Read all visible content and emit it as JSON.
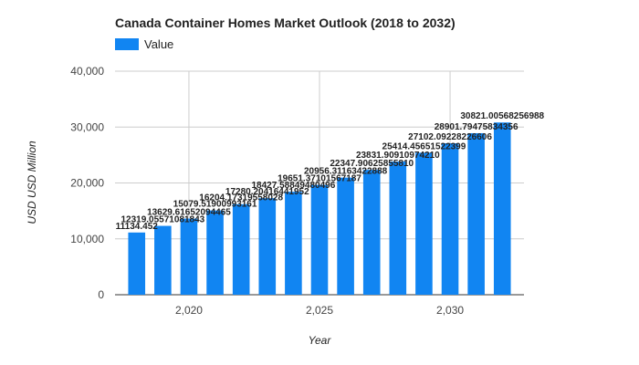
{
  "chart_data": {
    "type": "bar",
    "title": "Canada Container Homes Market Outlook (2018 to 2032)",
    "xlabel": "Year",
    "ylabel": "USD USD Million",
    "legend": {
      "position": "top-left",
      "entries": [
        "Value"
      ]
    },
    "x": [
      2018,
      2019,
      2020,
      2021,
      2022,
      2023,
      2024,
      2025,
      2026,
      2027,
      2028,
      2029,
      2030,
      2031,
      2032
    ],
    "series": [
      {
        "name": "Value",
        "color": "#1185f2",
        "values": [
          11134.452,
          12319.05571081843,
          13629.61652094465,
          15079.51900993161,
          16204.17319558028,
          17280.20416441952,
          18427.58849480496,
          19651.37101567187,
          20956.31163422888,
          22347.9062585581,
          23831.9091097421,
          25414.45651522399,
          27102.09228226606,
          28901.79475834356,
          30821.00568256988
        ],
        "labels": [
          "11134.452",
          "12319.05571081843",
          "13629.61652094465",
          "15079.51900993161",
          "16204.17319558028",
          "17280.20416441952",
          "18427.58849480496",
          "19651.37101567187",
          "20956.31163422888",
          "22347.90625855810",
          "23831.90910974210",
          "25414.45651522399",
          "27102.09228226606",
          "28901.79475834356",
          "30821.00568256988"
        ]
      }
    ],
    "xticks": [
      "2,020",
      "2,025",
      "2,030"
    ],
    "xtick_values": [
      2020,
      2025,
      2030
    ],
    "yticks": [
      "0",
      "10,000",
      "20,000",
      "30,000",
      "40,000"
    ],
    "ytick_values": [
      0,
      10000,
      20000,
      30000,
      40000
    ],
    "ylim": [
      0,
      40000
    ],
    "grid": true
  }
}
